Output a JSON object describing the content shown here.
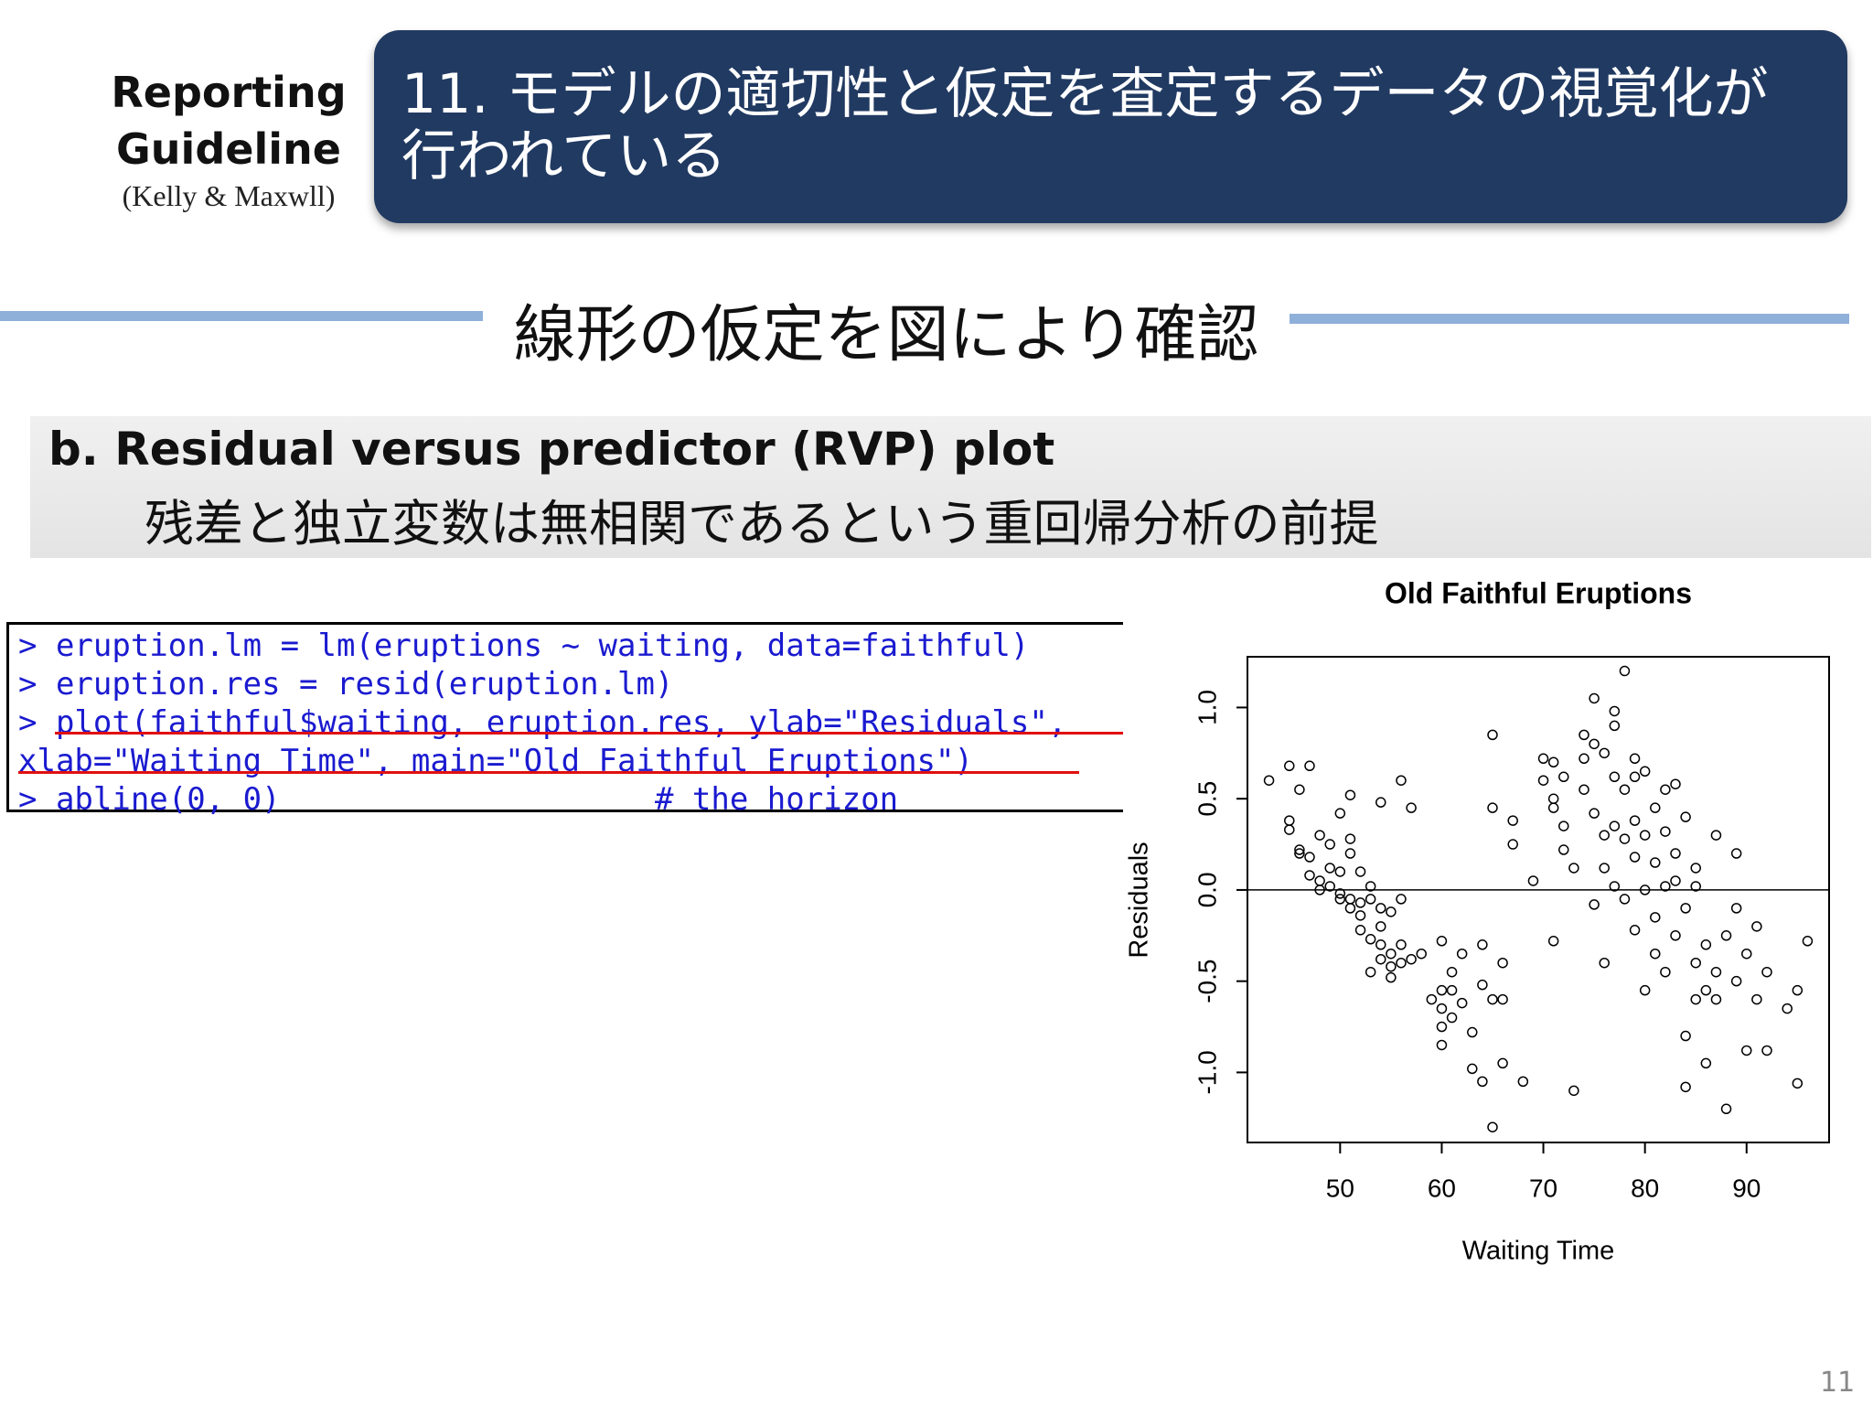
{
  "header": {
    "guideline_title": "Reporting Guideline",
    "guideline_source": "(Kelly & Maxwll)",
    "banner": "11. モデルの適切性と仮定を査定するデータの視覚化が行われている"
  },
  "section_title": "線形の仮定を図により確認",
  "subsection": {
    "heading": "b. Residual versus predictor (RVP) plot",
    "description": "残差と独立変数は無相関であるという重回帰分析の前提"
  },
  "code": [
    "> eruption.lm = lm(eruptions ~ waiting, data=faithful)",
    "> eruption.res = resid(eruption.lm)",
    "> plot(faithful$waiting, eruption.res, ylab=\"Residuals\",",
    "xlab=\"Waiting Time\", main=\"Old Faithful Eruptions\")",
    "> abline(0, 0)                    # the horizon"
  ],
  "page_number": "11",
  "chart_data": {
    "type": "scatter",
    "title": "Old Faithful Eruptions",
    "x_label": "Waiting Time",
    "y_label": "Residuals",
    "color": "#000000",
    "xlim": [
      40.88,
      98.12
    ],
    "ylim": [
      -1.384,
      1.278
    ],
    "xticks": [
      50,
      60,
      70,
      80,
      90
    ],
    "yticks": [
      {
        "value": -1,
        "label": "-1.0"
      },
      -0.5,
      {
        "value": 0,
        "label": "0.0"
      },
      0.5,
      {
        "value": 1,
        "label": "1.0"
      }
    ],
    "hline": 0,
    "x": [
      43,
      45,
      45,
      45,
      46,
      46,
      46,
      47,
      47,
      47,
      48,
      48,
      48,
      49,
      49,
      49,
      50,
      50,
      50,
      50,
      51,
      51,
      51,
      51,
      51,
      52,
      52,
      52,
      52,
      53,
      53,
      53,
      53,
      54,
      54,
      54,
      54,
      54,
      55,
      55,
      55,
      55,
      56,
      56,
      56,
      56,
      57,
      57,
      58,
      59,
      60,
      60,
      60,
      60,
      60,
      61,
      61,
      61,
      62,
      62,
      63,
      63,
      64,
      64,
      64,
      65,
      65,
      65,
      65,
      66,
      66,
      66,
      67,
      67,
      68,
      69,
      70,
      70,
      71,
      71,
      71,
      71,
      72,
      72,
      72,
      73,
      73,
      74,
      74,
      74,
      75,
      75,
      75,
      75,
      76,
      76,
      76,
      76,
      77,
      77,
      77,
      77,
      77,
      78,
      78,
      78,
      78,
      79,
      79,
      79,
      79,
      79,
      80,
      80,
      80,
      80,
      81,
      81,
      81,
      81,
      82,
      82,
      82,
      82,
      83,
      83,
      83,
      83,
      84,
      84,
      84,
      84,
      85,
      85,
      85,
      85,
      86,
      86,
      86,
      87,
      87,
      87,
      88,
      88,
      89,
      89,
      89,
      90,
      90,
      91,
      91,
      92,
      92,
      94,
      95,
      95,
      96
    ],
    "values": [
      0.6,
      0.68,
      0.38,
      0.33,
      0.55,
      0.22,
      0.2,
      0.68,
      0.18,
      0.08,
      0.3,
      0.05,
      0.0,
      0.12,
      0.25,
      0.02,
      0.1,
      -0.02,
      -0.05,
      0.42,
      0.28,
      0.52,
      0.2,
      -0.05,
      -0.1,
      0.1,
      -0.07,
      -0.14,
      -0.22,
      -0.27,
      -0.05,
      0.02,
      -0.45,
      -0.3,
      -0.38,
      -0.1,
      0.48,
      -0.2,
      -0.35,
      -0.42,
      -0.48,
      -0.12,
      -0.3,
      -0.4,
      0.6,
      -0.05,
      -0.38,
      0.45,
      -0.35,
      -0.6,
      -0.28,
      -0.55,
      -0.75,
      -0.85,
      -0.65,
      -0.45,
      -0.55,
      -0.7,
      -0.35,
      -0.62,
      -0.78,
      -0.98,
      -0.3,
      -0.52,
      -1.05,
      0.85,
      0.45,
      -0.6,
      -1.3,
      -0.4,
      -0.6,
      -0.95,
      0.38,
      0.25,
      -1.05,
      0.05,
      0.72,
      0.6,
      -0.28,
      0.5,
      0.7,
      0.45,
      0.35,
      0.62,
      0.22,
      -1.1,
      0.12,
      0.72,
      0.85,
      0.55,
      1.05,
      0.8,
      -0.08,
      0.42,
      0.75,
      0.3,
      0.12,
      -0.4,
      0.98,
      0.9,
      0.62,
      0.35,
      0.02,
      1.2,
      0.55,
      0.28,
      -0.05,
      0.72,
      0.62,
      0.38,
      0.18,
      -0.22,
      0.65,
      0.3,
      0.0,
      -0.55,
      0.45,
      0.15,
      -0.15,
      -0.35,
      0.55,
      0.32,
      0.02,
      -0.45,
      0.58,
      0.2,
      -0.25,
      0.05,
      0.4,
      -0.1,
      -0.8,
      -1.08,
      0.12,
      -0.4,
      -0.6,
      0.02,
      -0.3,
      -0.55,
      -0.95,
      0.3,
      -0.45,
      -0.6,
      -1.2,
      -0.25,
      0.2,
      -0.1,
      -0.5,
      -0.35,
      -0.88,
      -0.6,
      -0.2,
      -0.88,
      -0.45,
      -0.65,
      -0.55,
      -1.06,
      -0.28
    ]
  }
}
